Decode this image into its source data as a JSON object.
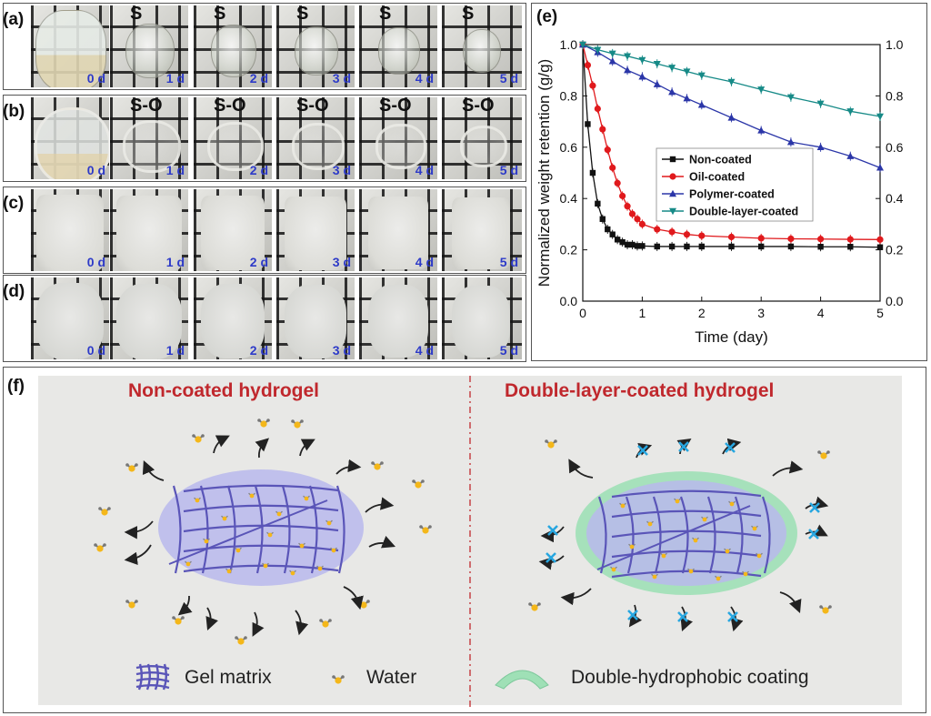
{
  "photo_panels": [
    {
      "label": "(a)",
      "kind": "clear",
      "mark": "S",
      "days": [
        "0 d",
        "1 d",
        "2 d",
        "3 d",
        "4 d",
        "5 d"
      ]
    },
    {
      "label": "(b)",
      "kind": "ring",
      "mark": "S-O",
      "days": [
        "0 d",
        "1 d",
        "2 d",
        "3 d",
        "4 d",
        "5 d"
      ]
    },
    {
      "label": "(c)",
      "kind": "opaque",
      "mark": "",
      "days": [
        "0 d",
        "1 d",
        "2 d",
        "3 d",
        "4 d",
        "5 d"
      ]
    },
    {
      "label": "(d)",
      "kind": "opaque2",
      "mark": "",
      "days": [
        "0 d",
        "1 d",
        "2 d",
        "3 d",
        "4 d",
        "5 d"
      ]
    }
  ],
  "panel_e": {
    "label": "(e)"
  },
  "chart_data": {
    "type": "line",
    "xlabel": "Time (day)",
    "ylabel": "Normalized weight retention (g/g)",
    "xlim": [
      0,
      5
    ],
    "ylim": [
      0,
      1.0
    ],
    "xticks": [
      "0",
      "1",
      "2",
      "3",
      "4",
      "5"
    ],
    "yticks": [
      "0.0",
      "0.2",
      "0.4",
      "0.6",
      "0.8",
      "1.0"
    ],
    "right_axis": true,
    "legend_position": "center",
    "series": [
      {
        "name": "Non-coated",
        "color": "#111111",
        "marker": "square",
        "x": [
          0,
          0.083,
          0.167,
          0.25,
          0.333,
          0.417,
          0.5,
          0.583,
          0.667,
          0.75,
          0.833,
          0.917,
          1.0,
          1.25,
          1.5,
          1.75,
          2.0,
          2.5,
          3.0,
          3.5,
          4.0,
          4.5,
          5.0
        ],
        "y": [
          1.0,
          0.69,
          0.5,
          0.38,
          0.32,
          0.28,
          0.26,
          0.24,
          0.23,
          0.22,
          0.22,
          0.215,
          0.215,
          0.213,
          0.213,
          0.213,
          0.213,
          0.213,
          0.213,
          0.213,
          0.212,
          0.212,
          0.21
        ]
      },
      {
        "name": "Oil-coated",
        "color": "#e0191c",
        "marker": "circle",
        "x": [
          0,
          0.083,
          0.167,
          0.25,
          0.333,
          0.417,
          0.5,
          0.583,
          0.667,
          0.75,
          0.833,
          0.917,
          1.0,
          1.25,
          1.5,
          1.75,
          2.0,
          2.5,
          3.0,
          3.5,
          4.0,
          4.5,
          5.0
        ],
        "y": [
          1.0,
          0.92,
          0.84,
          0.75,
          0.67,
          0.59,
          0.52,
          0.46,
          0.41,
          0.37,
          0.34,
          0.32,
          0.3,
          0.28,
          0.27,
          0.26,
          0.255,
          0.25,
          0.245,
          0.243,
          0.242,
          0.241,
          0.24
        ]
      },
      {
        "name": "Polymer-coated",
        "color": "#2b36a8",
        "marker": "triangle-up",
        "x": [
          0,
          0.25,
          0.5,
          0.75,
          1.0,
          1.25,
          1.5,
          1.75,
          2.0,
          2.5,
          3.0,
          3.5,
          4.0,
          4.5,
          5.0
        ],
        "y": [
          1.0,
          0.97,
          0.935,
          0.9,
          0.875,
          0.845,
          0.815,
          0.79,
          0.765,
          0.715,
          0.665,
          0.62,
          0.6,
          0.565,
          0.52
        ]
      },
      {
        "name": "Double-layer-coated",
        "color": "#168a87",
        "marker": "triangle-down",
        "x": [
          0,
          0.25,
          0.5,
          0.75,
          1.0,
          1.25,
          1.5,
          1.75,
          2.0,
          2.5,
          3.0,
          3.5,
          4.0,
          4.5,
          5.0
        ],
        "y": [
          1.0,
          0.98,
          0.965,
          0.955,
          0.94,
          0.925,
          0.91,
          0.895,
          0.88,
          0.855,
          0.825,
          0.795,
          0.77,
          0.74,
          0.72
        ]
      }
    ]
  },
  "panel_f": {
    "label": "(f)",
    "left_title": "Non-coated hydrogel",
    "right_title": "Double-layer-coated hydrogel",
    "legend": {
      "gel_matrix": "Gel matrix",
      "water": "Water",
      "coating": "Double-hydrophobic coating"
    },
    "colors": {
      "title": "#c0282d",
      "gel": "#b9b9ec",
      "mesh": "#5a55b8",
      "coating": "#9fe0b6",
      "water_dot": "#f4b71a",
      "blocked_x": "#27a6e0"
    }
  }
}
